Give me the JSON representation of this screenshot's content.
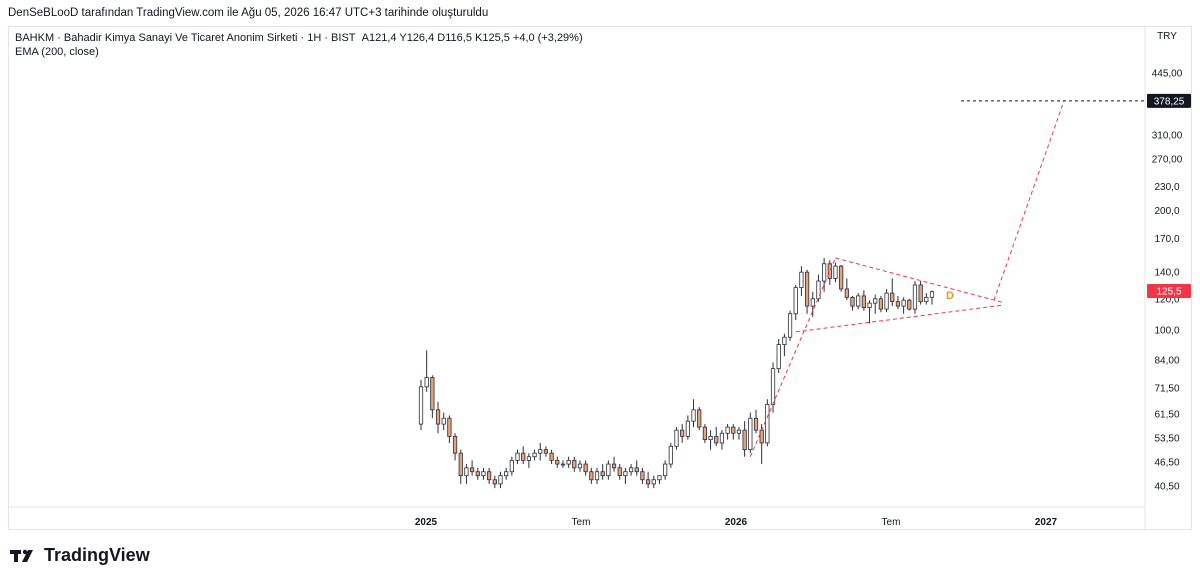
{
  "header": {
    "caption": "DenSeBLooD tarafından TradingView.com ile Ağu 05, 2026 16:47 UTC+3 tarihinde oluşturuldu"
  },
  "legend": {
    "symbol_line": "BAHKM · Bahadir Kimya Sanayi Ve Ticaret Anonim Sirketi · 1H · BIST",
    "ohlc": "A121,4  Y126,4  D116,5  K125,5  +4,0 (+3,29%)",
    "indicator": "EMA (200, close)"
  },
  "footer": {
    "brand": "TradingView",
    "logo_icon": "tradingview-logo-icon"
  },
  "colors": {
    "up_body": "#ffffff",
    "down_body": "#e8a37a",
    "candle_outline": "#2a2e39",
    "pattern_line": "#f23645",
    "price_badge": "#f23645",
    "target_badge": "#131722",
    "d_label": "#f7931a"
  },
  "chart_data": {
    "type": "candlestick",
    "currency": "TRY",
    "y_scale": "log",
    "ylim": [
      38,
      505
    ],
    "y_ticks": [
      "445,00",
      "310,00",
      "270,00",
      "230,0",
      "200,0",
      "170,0",
      "140,0",
      "120,0",
      "100,0",
      "84,00",
      "71,50",
      "61,50",
      "53,50",
      "46,50",
      "40,50"
    ],
    "x_ticks": [
      "2025",
      "Tem",
      "2026",
      "Tem",
      "2027"
    ],
    "last_price_label": "125,5",
    "target_price_label": "378,25",
    "target_price": 378.25,
    "pattern_label": "D",
    "candles": [
      [
        58,
        75,
        56,
        72
      ],
      [
        72,
        89,
        70,
        76
      ],
      [
        76,
        77,
        60,
        63
      ],
      [
        63,
        66,
        55,
        58
      ],
      [
        58,
        62,
        56,
        60
      ],
      [
        60,
        61,
        52,
        54
      ],
      [
        54,
        55,
        47,
        49
      ],
      [
        49,
        50,
        41,
        43
      ],
      [
        43,
        46,
        41,
        45
      ],
      [
        45,
        47,
        43,
        44
      ],
      [
        44,
        45,
        42,
        43
      ],
      [
        43,
        45,
        42,
        44
      ],
      [
        44,
        45,
        41,
        42
      ],
      [
        42,
        43,
        40,
        41
      ],
      [
        41,
        44,
        40,
        43
      ],
      [
        43,
        45,
        42,
        44
      ],
      [
        44,
        48,
        43,
        47
      ],
      [
        47,
        50,
        46,
        49
      ],
      [
        49,
        51,
        46,
        47
      ],
      [
        47,
        49,
        45,
        48
      ],
      [
        48,
        50,
        47,
        49
      ],
      [
        49,
        52,
        47,
        50
      ],
      [
        50,
        51,
        48,
        49
      ],
      [
        49,
        50,
        46,
        47
      ],
      [
        47,
        48,
        45,
        46
      ],
      [
        46,
        47,
        45,
        46
      ],
      [
        46,
        48,
        45,
        47
      ],
      [
        47,
        48,
        44,
        45
      ],
      [
        45,
        47,
        44,
        46
      ],
      [
        46,
        47,
        43,
        44
      ],
      [
        44,
        45,
        41,
        42
      ],
      [
        42,
        45,
        41,
        44
      ],
      [
        44,
        46,
        42,
        43
      ],
      [
        43,
        47,
        42,
        46
      ],
      [
        46,
        48,
        44,
        45
      ],
      [
        45,
        46,
        42,
        43
      ],
      [
        43,
        45,
        41,
        44
      ],
      [
        44,
        46,
        43,
        45
      ],
      [
        45,
        47,
        43,
        44
      ],
      [
        44,
        45,
        41,
        42
      ],
      [
        42,
        44,
        40,
        41
      ],
      [
        41,
        43,
        40,
        42
      ],
      [
        42,
        43,
        41,
        43
      ],
      [
        43,
        47,
        42,
        46
      ],
      [
        46,
        52,
        45,
        51
      ],
      [
        51,
        57,
        50,
        56
      ],
      [
        56,
        58,
        52,
        54
      ],
      [
        54,
        61,
        53,
        59
      ],
      [
        59,
        67,
        57,
        63
      ],
      [
        63,
        64,
        56,
        57
      ],
      [
        57,
        58,
        52,
        53
      ],
      [
        53,
        56,
        50,
        54
      ],
      [
        54,
        57,
        51,
        52
      ],
      [
        52,
        56,
        50,
        55
      ],
      [
        55,
        58,
        53,
        57
      ],
      [
        57,
        58,
        53,
        55
      ],
      [
        55,
        57,
        53,
        56
      ],
      [
        56,
        59,
        48,
        50
      ],
      [
        50,
        62,
        49,
        60
      ],
      [
        60,
        63,
        55,
        56
      ],
      [
        56,
        58,
        46,
        52
      ],
      [
        52,
        67,
        51,
        65
      ],
      [
        65,
        83,
        62,
        80
      ],
      [
        80,
        95,
        78,
        92
      ],
      [
        92,
        98,
        86,
        96
      ],
      [
        96,
        112,
        94,
        110
      ],
      [
        110,
        130,
        106,
        128
      ],
      [
        128,
        145,
        122,
        140
      ],
      [
        140,
        142,
        110,
        115
      ],
      [
        115,
        125,
        108,
        120
      ],
      [
        120,
        138,
        118,
        133
      ],
      [
        133,
        152,
        125,
        147
      ],
      [
        147,
        150,
        130,
        135
      ],
      [
        135,
        148,
        132,
        145
      ],
      [
        145,
        146,
        125,
        127
      ],
      [
        127,
        135,
        119,
        121
      ],
      [
        121,
        122,
        112,
        115
      ],
      [
        115,
        124,
        113,
        122
      ],
      [
        122,
        126,
        112,
        114
      ],
      [
        114,
        119,
        104,
        117
      ],
      [
        117,
        123,
        110,
        120
      ],
      [
        120,
        122,
        111,
        113
      ],
      [
        113,
        127,
        111,
        124
      ],
      [
        124,
        135,
        115,
        118
      ],
      [
        118,
        122,
        113,
        115
      ],
      [
        115,
        121,
        110,
        119
      ],
      [
        119,
        120,
        112,
        113
      ],
      [
        113,
        133,
        110,
        130
      ],
      [
        130,
        133,
        116,
        118
      ],
      [
        118,
        124,
        116,
        121
      ],
      [
        121,
        126,
        116,
        125
      ]
    ]
  }
}
